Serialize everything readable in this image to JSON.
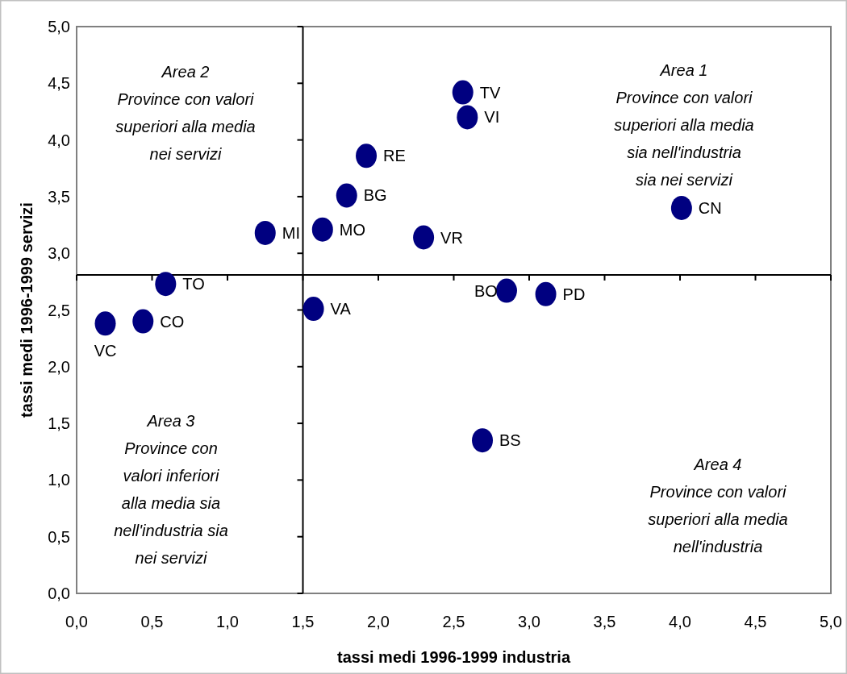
{
  "chart_data": {
    "type": "scatter",
    "xlabel": "tassi medi 1996-1999 industria",
    "ylabel": "tassi medi 1996-1999 servizi",
    "xlim": [
      0,
      5
    ],
    "ylim": [
      0,
      5
    ],
    "xticks": [
      {
        "value": 0,
        "label": "0,0"
      },
      {
        "value": 0.5,
        "label": "0,5"
      },
      {
        "value": 1,
        "label": "1,0"
      },
      {
        "value": 1.5,
        "label": "1,5"
      },
      {
        "value": 2,
        "label": "2,0"
      },
      {
        "value": 2.5,
        "label": "2,5"
      },
      {
        "value": 3,
        "label": "3,0"
      },
      {
        "value": 3.5,
        "label": "3,5"
      },
      {
        "value": 4,
        "label": "4,0"
      },
      {
        "value": 4.5,
        "label": "4,5"
      },
      {
        "value": 5,
        "label": "5,0"
      }
    ],
    "yticks": [
      {
        "value": 0,
        "label": "0,0"
      },
      {
        "value": 0.5,
        "label": "0,5"
      },
      {
        "value": 1,
        "label": "1,0"
      },
      {
        "value": 1.5,
        "label": "1,5"
      },
      {
        "value": 2,
        "label": "2,0"
      },
      {
        "value": 2.5,
        "label": "2,5"
      },
      {
        "value": 3,
        "label": "3,0"
      },
      {
        "value": 3.5,
        "label": "3,5"
      },
      {
        "value": 4,
        "label": "4,0"
      },
      {
        "value": 4.5,
        "label": "4,5"
      },
      {
        "value": 5,
        "label": "5,0"
      }
    ],
    "marker": "circle",
    "grid": false,
    "ref_lines": [
      {
        "axis": "x",
        "value": 1.5,
        "color": "#000000"
      },
      {
        "axis": "y",
        "value": 2.81,
        "color": "#000000"
      }
    ],
    "series": [
      {
        "name": "TV",
        "color": "#000080",
        "x": [
          2.56
        ],
        "values": [
          4.42
        ]
      },
      {
        "name": "VI",
        "color": "#000080",
        "x": [
          2.59
        ],
        "values": [
          4.2
        ]
      },
      {
        "name": "RE",
        "color": "#000080",
        "x": [
          1.92
        ],
        "values": [
          3.86
        ]
      },
      {
        "name": "BG",
        "color": "#000080",
        "x": [
          1.79
        ],
        "values": [
          3.51
        ]
      },
      {
        "name": "MI",
        "color": "#000080",
        "x": [
          1.25
        ],
        "values": [
          3.18
        ]
      },
      {
        "name": "MO",
        "color": "#000080",
        "x": [
          1.63
        ],
        "values": [
          3.21
        ]
      },
      {
        "name": "VR",
        "color": "#000080",
        "x": [
          2.3
        ],
        "values": [
          3.14
        ]
      },
      {
        "name": "CN",
        "color": "#000080",
        "x": [
          4.01
        ],
        "values": [
          3.4
        ]
      },
      {
        "name": "TO",
        "color": "#000080",
        "x": [
          0.59
        ],
        "values": [
          2.73
        ]
      },
      {
        "name": "CO",
        "color": "#000080",
        "x": [
          0.44
        ],
        "values": [
          2.4
        ]
      },
      {
        "name": "VC",
        "color": "#000080",
        "x": [
          0.19
        ],
        "values": [
          2.38
        ]
      },
      {
        "name": "VA",
        "color": "#000080",
        "x": [
          1.57
        ],
        "values": [
          2.51
        ]
      },
      {
        "name": "BO",
        "color": "#000080",
        "x": [
          2.85
        ],
        "values": [
          2.67
        ]
      },
      {
        "name": "PD",
        "color": "#000080",
        "x": [
          3.11
        ],
        "values": [
          2.64
        ]
      },
      {
        "name": "BS",
        "color": "#000080",
        "x": [
          2.69
        ],
        "values": [
          1.35
        ]
      }
    ],
    "annotations": [
      "Area 1\nProvince con valori\nsuperiori alla media\nsia nell'industria\nsia nei servizi",
      "Area 2\nProvince con valori\nsuperiori alla media\nnei servizi",
      "Area 3\nProvince con\nvalori inferiori\nalla media sia\nnell'industria sia\nnei servizi",
      "Area 4\nProvince con valori\nsuperiori alla media\nnell'industria"
    ]
  }
}
